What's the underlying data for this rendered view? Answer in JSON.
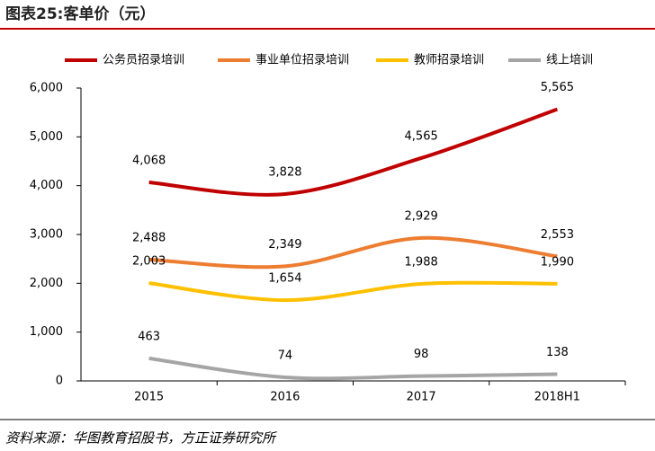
{
  "chart_data": {
    "type": "line",
    "title": "图表25:客单价（元）",
    "source": "资料来源：华图教育招股书，方正证券研究所",
    "categories": [
      "2015",
      "2016",
      "2017",
      "2018H1"
    ],
    "series": [
      {
        "name": "公务员招录培训",
        "color": "#c00000",
        "values": [
          4068,
          3828,
          4565,
          5565
        ],
        "value_labels": [
          "4,068",
          "3,828",
          "4,565",
          "5,565"
        ]
      },
      {
        "name": "事业单位招录培训",
        "color": "#ed7d31",
        "values": [
          2488,
          2349,
          2929,
          2553
        ],
        "value_labels": [
          "2,488",
          "2,349",
          "2,929",
          "2,553"
        ]
      },
      {
        "name": "教师招录培训",
        "color": "#ffc000",
        "values": [
          2003,
          1654,
          1988,
          1990
        ],
        "value_labels": [
          "2,003",
          "1,654",
          "1,988",
          "1,990"
        ]
      },
      {
        "name": "线上培训",
        "color": "#a5a5a5",
        "values": [
          463,
          74,
          98,
          138
        ]
      }
    ],
    "ylim": [
      0,
      6000
    ],
    "yticks": [
      0,
      {
        "value": 1000,
        "label": "1,000"
      },
      {
        "value": 2000,
        "label": "2,000"
      },
      {
        "value": 3000,
        "label": "3,000"
      },
      {
        "value": 4000,
        "label": "4,000"
      },
      {
        "value": 5000,
        "label": "5,000"
      },
      {
        "value": 6000,
        "label": "6,000"
      }
    ],
    "smooth": true
  }
}
